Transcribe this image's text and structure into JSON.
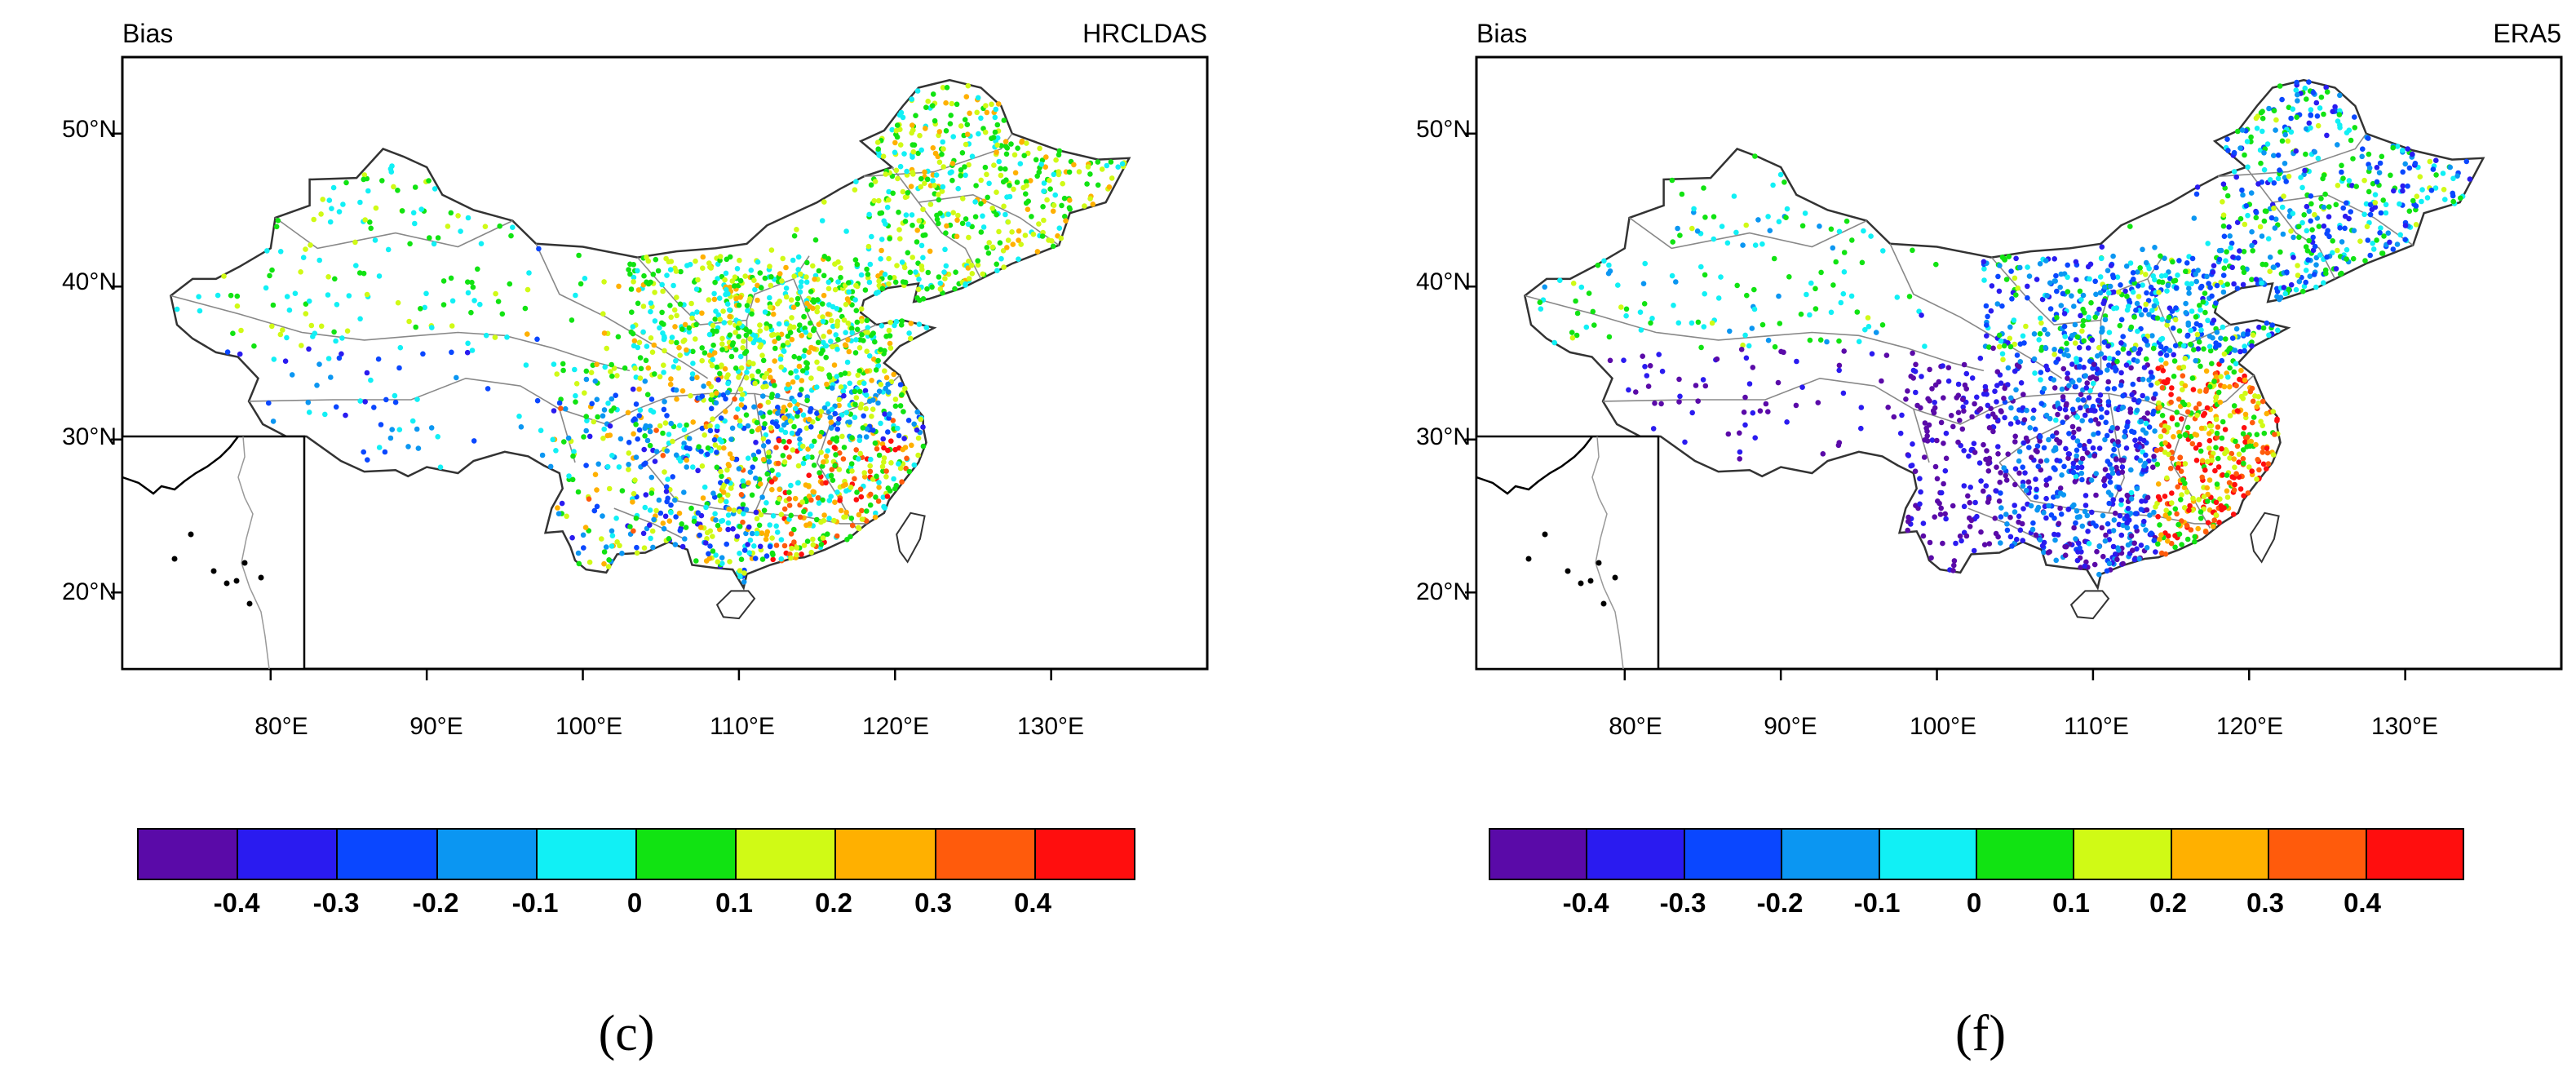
{
  "colors": {
    "scale": [
      "#5a0aa8",
      "#2a1bf0",
      "#0a47ff",
      "#0b96f2",
      "#11f0f5",
      "#11e312",
      "#d0fa15",
      "#ffb000",
      "#ff5b0c",
      "#ff0e0e"
    ]
  },
  "colorbar": {
    "labels": [
      "-0.4",
      "-0.3",
      "-0.2",
      "-0.1",
      "0",
      "0.1",
      "0.2",
      "0.3",
      "0.4"
    ]
  },
  "panels": [
    {
      "id": "c",
      "corner_left": "Bias",
      "corner_right": "HRCLDAS",
      "tag": "(c)",
      "lat_labels": [
        "50°N",
        "40°N",
        "30°N",
        "20°N"
      ],
      "lon_labels": [
        "80°E",
        "90°E",
        "100°E",
        "110°E",
        "120°E",
        "130°E"
      ],
      "scheme": "hrcldas"
    },
    {
      "id": "f",
      "corner_left": "Bias",
      "corner_right": "ERA5",
      "tag": "(f)",
      "lat_labels": [
        "50°N",
        "40°N",
        "30°N",
        "20°N"
      ],
      "lon_labels": [
        "80°E",
        "90°E",
        "100°E",
        "110°E",
        "120°E",
        "130°E"
      ],
      "scheme": "era5"
    }
  ]
}
